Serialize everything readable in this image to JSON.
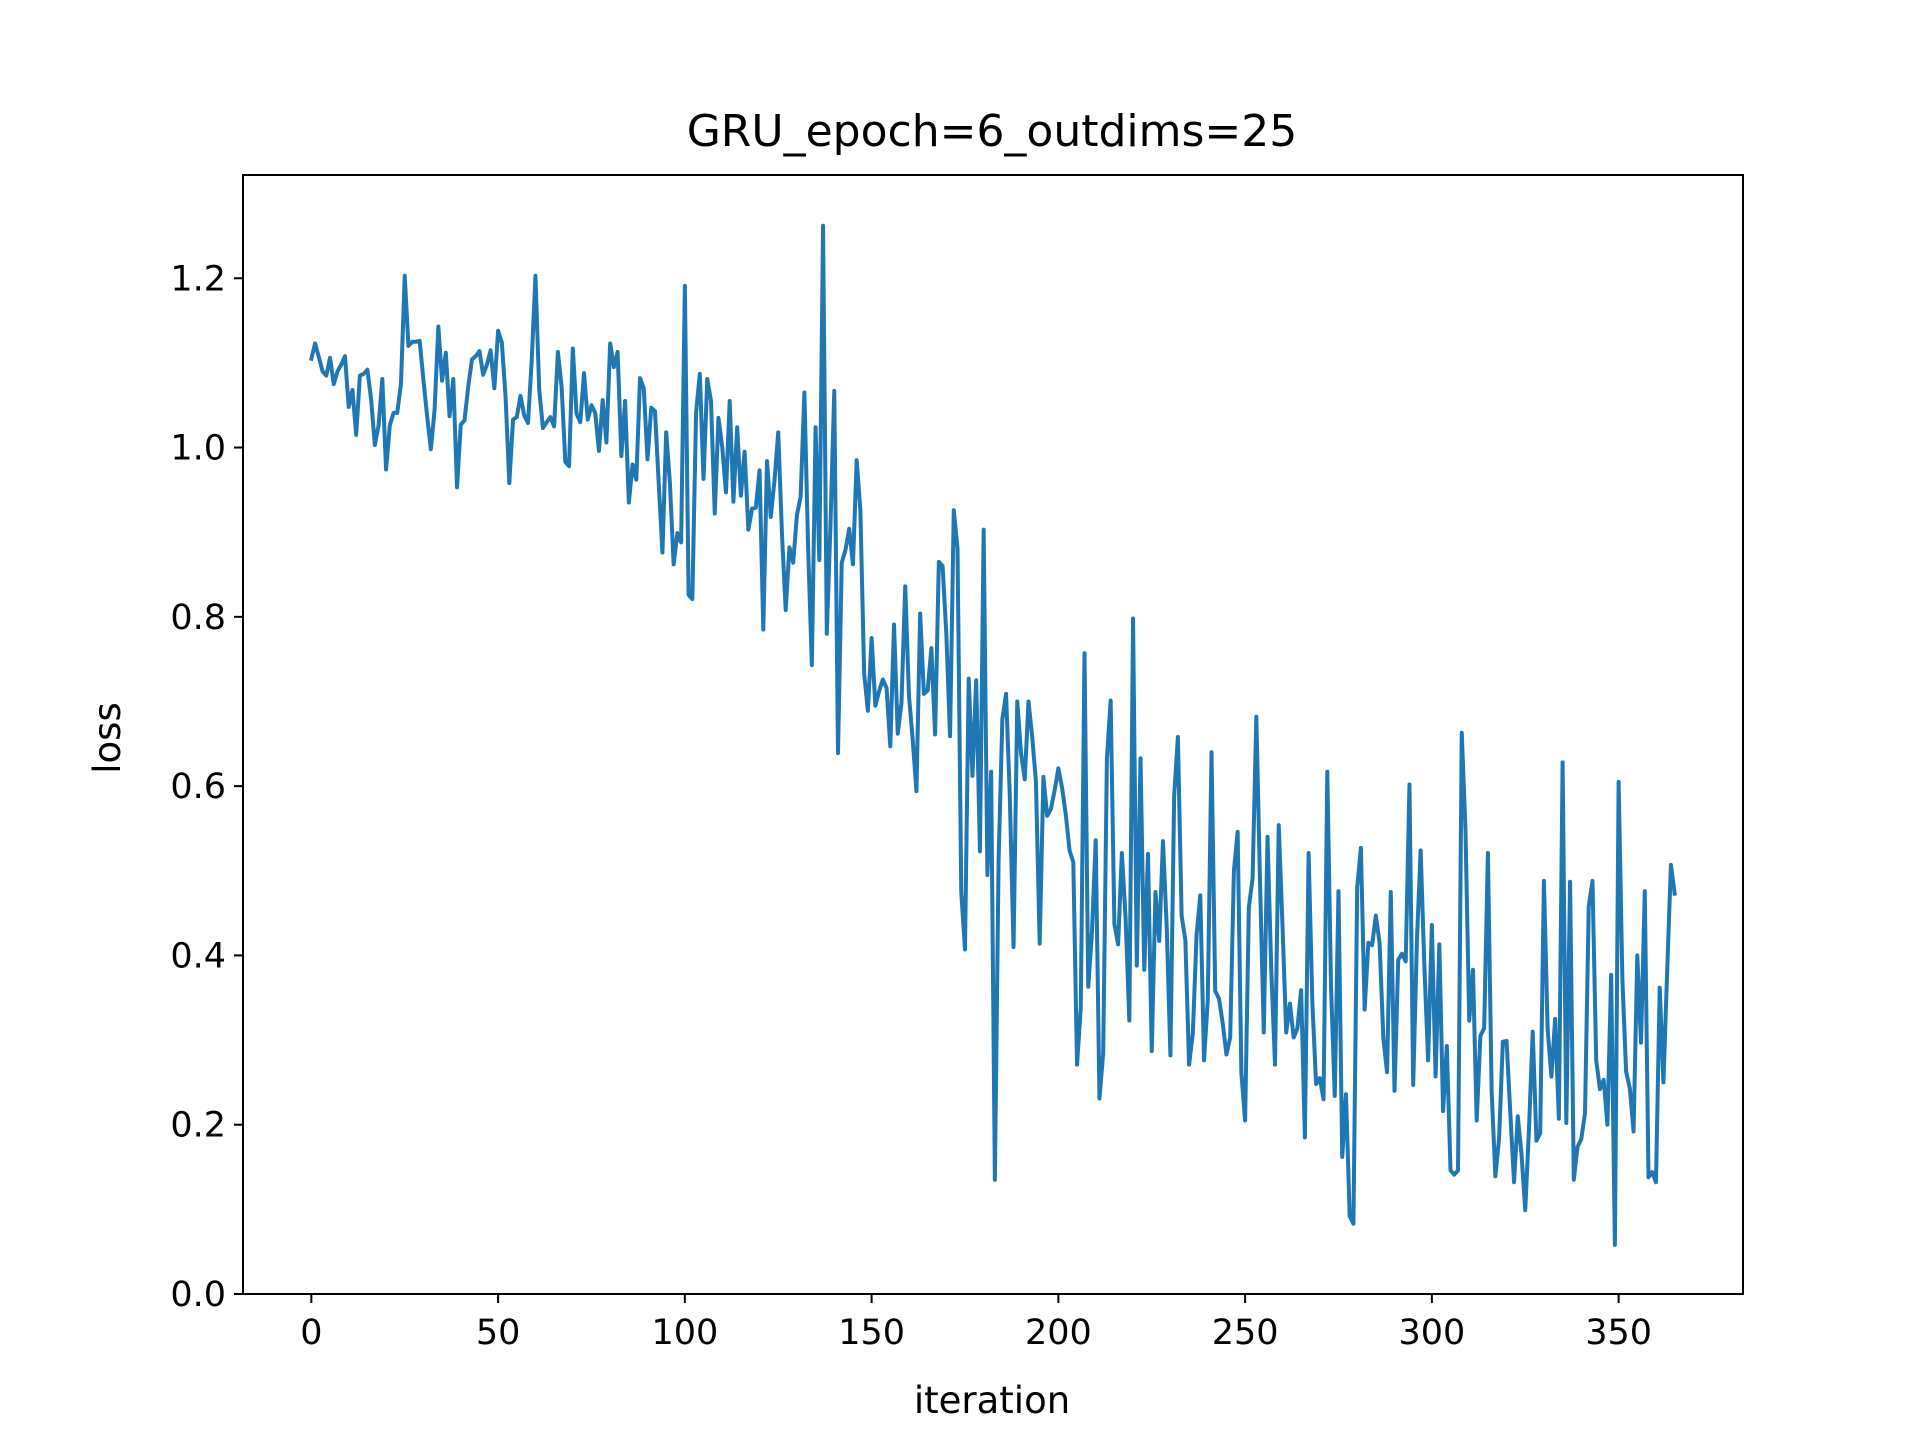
{
  "chart_data": {
    "type": "line",
    "title": "GRU_epoch=6_outdims=25",
    "xlabel": "iteration",
    "ylabel": "loss",
    "xlim": [
      -18.3,
      383.3
    ],
    "ylim": [
      0.0,
      1.322
    ],
    "x_ticks": [
      0,
      50,
      100,
      150,
      200,
      250,
      300,
      350
    ],
    "y_ticks": [
      0.0,
      0.2,
      0.4,
      0.6,
      0.8,
      1.0,
      1.2
    ],
    "x_tick_labels": [
      "0",
      "50",
      "100",
      "150",
      "200",
      "250",
      "300",
      "350"
    ],
    "y_tick_labels": [
      "0.0",
      "0.2",
      "0.4",
      "0.6",
      "0.8",
      "1.0",
      "1.2"
    ],
    "grid": false,
    "series": [
      {
        "color": "#1f77b4",
        "x_start": 0,
        "x_step": 1,
        "values": [
          1.105,
          1.123,
          1.107,
          1.09,
          1.085,
          1.106,
          1.075,
          1.09,
          1.098,
          1.108,
          1.048,
          1.068,
          1.015,
          1.085,
          1.087,
          1.092,
          1.057,
          1.003,
          1.026,
          1.081,
          0.974,
          1.026,
          1.041,
          1.041,
          1.076,
          1.203,
          1.12,
          1.125,
          1.125,
          1.126,
          1.08,
          1.037,
          0.998,
          1.045,
          1.143,
          1.079,
          1.112,
          1.037,
          1.081,
          0.953,
          1.027,
          1.032,
          1.072,
          1.104,
          1.108,
          1.114,
          1.086,
          1.098,
          1.115,
          1.07,
          1.138,
          1.124,
          1.06,
          0.958,
          1.033,
          1.036,
          1.061,
          1.038,
          1.029,
          1.103,
          1.203,
          1.069,
          1.023,
          1.03,
          1.036,
          1.025,
          1.113,
          1.072,
          0.983,
          0.978,
          1.117,
          1.04,
          1.03,
          1.088,
          1.033,
          1.05,
          1.041,
          0.996,
          1.056,
          1.006,
          1.123,
          1.095,
          1.113,
          0.99,
          1.055,
          0.935,
          0.98,
          0.962,
          1.082,
          1.07,
          0.986,
          1.047,
          1.043,
          0.958,
          0.876,
          1.018,
          0.958,
          0.862,
          0.899,
          0.888,
          1.191,
          0.826,
          0.821,
          1.041,
          1.087,
          0.963,
          1.081,
          1.055,
          0.922,
          1.035,
          1.001,
          0.947,
          1.055,
          0.936,
          1.024,
          0.943,
          0.995,
          0.903,
          0.928,
          0.929,
          0.973,
          0.785,
          0.984,
          0.918,
          0.961,
          1.018,
          0.898,
          0.808,
          0.882,
          0.864,
          0.92,
          0.942,
          1.065,
          0.882,
          0.743,
          1.024,
          0.867,
          1.262,
          0.78,
          0.91,
          1.067,
          0.639,
          0.864,
          0.879,
          0.904,
          0.862,
          0.985,
          0.925,
          0.733,
          0.689,
          0.775,
          0.695,
          0.712,
          0.726,
          0.716,
          0.647,
          0.791,
          0.662,
          0.699,
          0.836,
          0.707,
          0.655,
          0.594,
          0.804,
          0.709,
          0.713,
          0.763,
          0.661,
          0.865,
          0.86,
          0.78,
          0.659,
          0.926,
          0.881,
          0.475,
          0.407,
          0.727,
          0.612,
          0.725,
          0.523,
          0.903,
          0.495,
          0.617,
          0.135,
          0.513,
          0.679,
          0.709,
          0.588,
          0.41,
          0.7,
          0.639,
          0.608,
          0.7,
          0.658,
          0.605,
          0.414,
          0.611,
          0.565,
          0.573,
          0.595,
          0.621,
          0.598,
          0.566,
          0.524,
          0.51,
          0.271,
          0.338,
          0.757,
          0.363,
          0.428,
          0.536,
          0.231,
          0.284,
          0.633,
          0.701,
          0.437,
          0.413,
          0.521,
          0.444,
          0.323,
          0.798,
          0.388,
          0.633,
          0.383,
          0.52,
          0.287,
          0.475,
          0.417,
          0.535,
          0.435,
          0.282,
          0.588,
          0.658,
          0.447,
          0.418,
          0.271,
          0.308,
          0.424,
          0.471,
          0.276,
          0.347,
          0.64,
          0.358,
          0.349,
          0.32,
          0.283,
          0.303,
          0.5,
          0.546,
          0.261,
          0.205,
          0.457,
          0.491,
          0.682,
          0.485,
          0.309,
          0.54,
          0.383,
          0.271,
          0.554,
          0.436,
          0.309,
          0.343,
          0.303,
          0.314,
          0.359,
          0.185,
          0.521,
          0.345,
          0.248,
          0.255,
          0.23,
          0.617,
          0.363,
          0.234,
          0.476,
          0.162,
          0.236,
          0.092,
          0.083,
          0.48,
          0.527,
          0.336,
          0.415,
          0.412,
          0.447,
          0.415,
          0.303,
          0.262,
          0.475,
          0.24,
          0.395,
          0.402,
          0.393,
          0.602,
          0.247,
          0.418,
          0.524,
          0.386,
          0.276,
          0.436,
          0.257,
          0.413,
          0.216,
          0.293,
          0.146,
          0.141,
          0.146,
          0.663,
          0.548,
          0.323,
          0.383,
          0.205,
          0.305,
          0.314,
          0.521,
          0.24,
          0.139,
          0.184,
          0.298,
          0.299,
          0.214,
          0.132,
          0.21,
          0.165,
          0.099,
          0.195,
          0.31,
          0.181,
          0.19,
          0.488,
          0.312,
          0.257,
          0.325,
          0.207,
          0.628,
          0.202,
          0.487,
          0.135,
          0.174,
          0.183,
          0.214,
          0.458,
          0.488,
          0.276,
          0.242,
          0.253,
          0.2,
          0.377,
          0.058,
          0.605,
          0.373,
          0.263,
          0.243,
          0.192,
          0.4,
          0.297,
          0.476,
          0.138,
          0.144,
          0.132,
          0.362,
          0.25,
          0.382,
          0.507,
          0.473
        ]
      }
    ]
  }
}
